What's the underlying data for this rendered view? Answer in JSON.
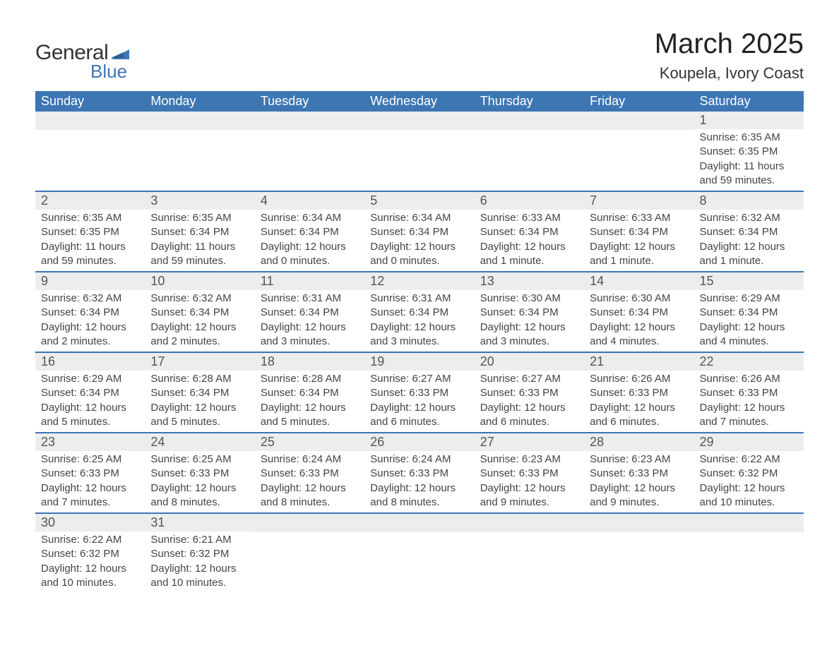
{
  "logo": {
    "general": "General",
    "blue": "Blue"
  },
  "title": "March 2025",
  "location": "Koupela, Ivory Coast",
  "theme": {
    "header_bg": "#3d76b3",
    "header_fg": "#ffffff",
    "daynum_bg": "#eceded",
    "border": "#3d76b3",
    "text": "#444444",
    "body_bg": "#ffffff",
    "title_fontsize": 40,
    "location_fontsize": 22,
    "th_fontsize": 18,
    "daynum_fontsize": 18,
    "daydata_fontsize": 15
  },
  "weekdays": [
    "Sunday",
    "Monday",
    "Tuesday",
    "Wednesday",
    "Thursday",
    "Friday",
    "Saturday"
  ],
  "weeks": [
    [
      null,
      null,
      null,
      null,
      null,
      null,
      {
        "d": "1",
        "sr": "6:35 AM",
        "ss": "6:35 PM",
        "dl": "11 hours and 59 minutes."
      }
    ],
    [
      {
        "d": "2",
        "sr": "6:35 AM",
        "ss": "6:35 PM",
        "dl": "11 hours and 59 minutes."
      },
      {
        "d": "3",
        "sr": "6:35 AM",
        "ss": "6:34 PM",
        "dl": "11 hours and 59 minutes."
      },
      {
        "d": "4",
        "sr": "6:34 AM",
        "ss": "6:34 PM",
        "dl": "12 hours and 0 minutes."
      },
      {
        "d": "5",
        "sr": "6:34 AM",
        "ss": "6:34 PM",
        "dl": "12 hours and 0 minutes."
      },
      {
        "d": "6",
        "sr": "6:33 AM",
        "ss": "6:34 PM",
        "dl": "12 hours and 1 minute."
      },
      {
        "d": "7",
        "sr": "6:33 AM",
        "ss": "6:34 PM",
        "dl": "12 hours and 1 minute."
      },
      {
        "d": "8",
        "sr": "6:32 AM",
        "ss": "6:34 PM",
        "dl": "12 hours and 1 minute."
      }
    ],
    [
      {
        "d": "9",
        "sr": "6:32 AM",
        "ss": "6:34 PM",
        "dl": "12 hours and 2 minutes."
      },
      {
        "d": "10",
        "sr": "6:32 AM",
        "ss": "6:34 PM",
        "dl": "12 hours and 2 minutes."
      },
      {
        "d": "11",
        "sr": "6:31 AM",
        "ss": "6:34 PM",
        "dl": "12 hours and 3 minutes."
      },
      {
        "d": "12",
        "sr": "6:31 AM",
        "ss": "6:34 PM",
        "dl": "12 hours and 3 minutes."
      },
      {
        "d": "13",
        "sr": "6:30 AM",
        "ss": "6:34 PM",
        "dl": "12 hours and 3 minutes."
      },
      {
        "d": "14",
        "sr": "6:30 AM",
        "ss": "6:34 PM",
        "dl": "12 hours and 4 minutes."
      },
      {
        "d": "15",
        "sr": "6:29 AM",
        "ss": "6:34 PM",
        "dl": "12 hours and 4 minutes."
      }
    ],
    [
      {
        "d": "16",
        "sr": "6:29 AM",
        "ss": "6:34 PM",
        "dl": "12 hours and 5 minutes."
      },
      {
        "d": "17",
        "sr": "6:28 AM",
        "ss": "6:34 PM",
        "dl": "12 hours and 5 minutes."
      },
      {
        "d": "18",
        "sr": "6:28 AM",
        "ss": "6:34 PM",
        "dl": "12 hours and 5 minutes."
      },
      {
        "d": "19",
        "sr": "6:27 AM",
        "ss": "6:33 PM",
        "dl": "12 hours and 6 minutes."
      },
      {
        "d": "20",
        "sr": "6:27 AM",
        "ss": "6:33 PM",
        "dl": "12 hours and 6 minutes."
      },
      {
        "d": "21",
        "sr": "6:26 AM",
        "ss": "6:33 PM",
        "dl": "12 hours and 6 minutes."
      },
      {
        "d": "22",
        "sr": "6:26 AM",
        "ss": "6:33 PM",
        "dl": "12 hours and 7 minutes."
      }
    ],
    [
      {
        "d": "23",
        "sr": "6:25 AM",
        "ss": "6:33 PM",
        "dl": "12 hours and 7 minutes."
      },
      {
        "d": "24",
        "sr": "6:25 AM",
        "ss": "6:33 PM",
        "dl": "12 hours and 8 minutes."
      },
      {
        "d": "25",
        "sr": "6:24 AM",
        "ss": "6:33 PM",
        "dl": "12 hours and 8 minutes."
      },
      {
        "d": "26",
        "sr": "6:24 AM",
        "ss": "6:33 PM",
        "dl": "12 hours and 8 minutes."
      },
      {
        "d": "27",
        "sr": "6:23 AM",
        "ss": "6:33 PM",
        "dl": "12 hours and 9 minutes."
      },
      {
        "d": "28",
        "sr": "6:23 AM",
        "ss": "6:33 PM",
        "dl": "12 hours and 9 minutes."
      },
      {
        "d": "29",
        "sr": "6:22 AM",
        "ss": "6:32 PM",
        "dl": "12 hours and 10 minutes."
      }
    ],
    [
      {
        "d": "30",
        "sr": "6:22 AM",
        "ss": "6:32 PM",
        "dl": "12 hours and 10 minutes."
      },
      {
        "d": "31",
        "sr": "6:21 AM",
        "ss": "6:32 PM",
        "dl": "12 hours and 10 minutes."
      },
      null,
      null,
      null,
      null,
      null
    ]
  ],
  "labels": {
    "sunrise": "Sunrise:",
    "sunset": "Sunset:",
    "daylight": "Daylight:"
  }
}
